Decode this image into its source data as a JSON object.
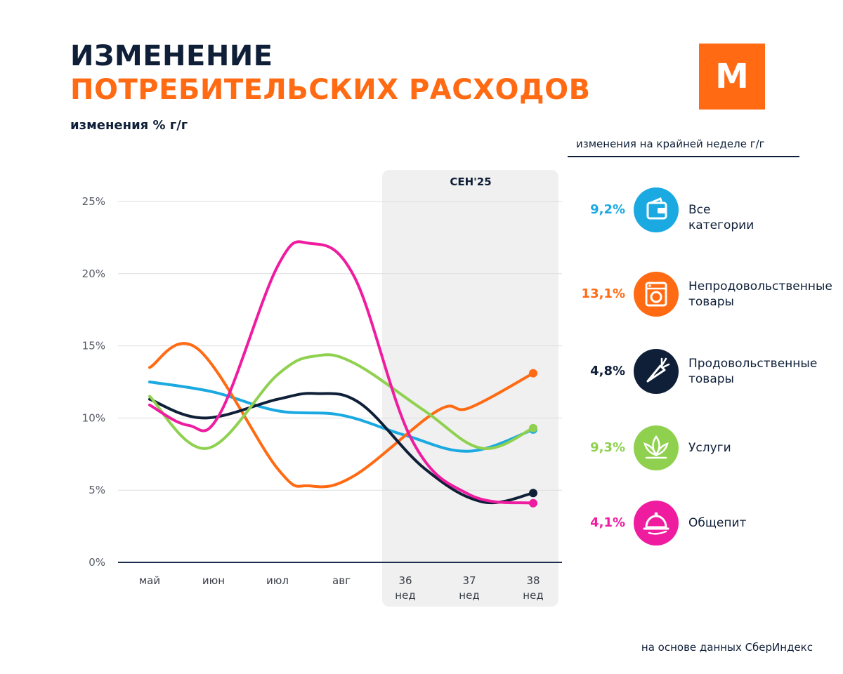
{
  "header": {
    "title_line1": "ИЗМЕНЕНИЕ",
    "title_line2": "ПОТРЕБИТЕЛЬСКИХ РАСХОДОВ",
    "subtitle": "изменения % г/г"
  },
  "logo": {
    "letter": "М"
  },
  "legend": {
    "header": "изменения на крайней неделе г/г",
    "items": [
      {
        "value": "9,2%",
        "label": "Все категории",
        "color": "#1aa9e1",
        "icon": "wallet-icon"
      },
      {
        "value": "13,1%",
        "label": "Непродовольственные товары",
        "color": "#ff6a13",
        "icon": "washing-machine-icon"
      },
      {
        "value": "4,8%",
        "label": "Продовольственные товары",
        "color": "#0f1f38",
        "icon": "carrot-icon"
      },
      {
        "value": "9,3%",
        "label": "Услуги",
        "color": "#8fd14f",
        "icon": "lotus-icon"
      },
      {
        "value": "4,1%",
        "label": "Общепит",
        "color": "#ef1ca0",
        "icon": "cloche-icon"
      }
    ]
  },
  "source": "на основе данных СберИндекс",
  "chart_data": {
    "type": "line",
    "period_label": "СЕН'25",
    "categories": [
      {
        "top": "май",
        "bottom": ""
      },
      {
        "top": "июн",
        "bottom": ""
      },
      {
        "top": "июл",
        "bottom": ""
      },
      {
        "top": "авг",
        "bottom": ""
      },
      {
        "top": "36",
        "bottom": "нед"
      },
      {
        "top": "37",
        "bottom": "нед"
      },
      {
        "top": "38",
        "bottom": "нед"
      }
    ],
    "y_ticks": [
      "0%",
      "5%",
      "10%",
      "15%",
      "20%",
      "25%"
    ],
    "ylim": [
      0,
      25
    ],
    "highlight_range": [
      4,
      6
    ],
    "series": [
      {
        "name": "Все категории",
        "color": "#1aa9e1",
        "x": [
          0,
          1,
          2,
          3,
          4,
          5,
          6
        ],
        "values": [
          12.5,
          11.8,
          10.5,
          10.2,
          8.8,
          7.7,
          9.2
        ]
      },
      {
        "name": "Непродовольственные товары",
        "color": "#ff6a13",
        "x": [
          0,
          0.75,
          2,
          2.5,
          3.2,
          4.5,
          5,
          6
        ],
        "values": [
          13.5,
          14.8,
          6.5,
          5.3,
          6.0,
          10.5,
          10.7,
          13.1
        ]
      },
      {
        "name": "Продовольственные товары",
        "color": "#0f1f38",
        "x": [
          0,
          0.85,
          2,
          2.6,
          3.3,
          4.3,
          5.2,
          6
        ],
        "values": [
          11.3,
          10.0,
          11.3,
          11.7,
          11.0,
          6.5,
          4.2,
          4.8
        ]
      },
      {
        "name": "Услуги",
        "color": "#8fd14f",
        "x": [
          0,
          0.9,
          2,
          2.6,
          3.2,
          4.3,
          5.2,
          6
        ],
        "values": [
          11.5,
          7.9,
          13.0,
          14.3,
          13.8,
          10.5,
          7.9,
          9.3
        ]
      },
      {
        "name": "Общепит",
        "color": "#ef1ca0",
        "x": [
          0,
          0.6,
          1.1,
          2.0,
          2.5,
          3.2,
          4.1,
          5.0,
          6
        ],
        "values": [
          10.9,
          9.5,
          10.3,
          20.5,
          22.1,
          19.8,
          8.5,
          4.7,
          4.1
        ]
      }
    ]
  }
}
